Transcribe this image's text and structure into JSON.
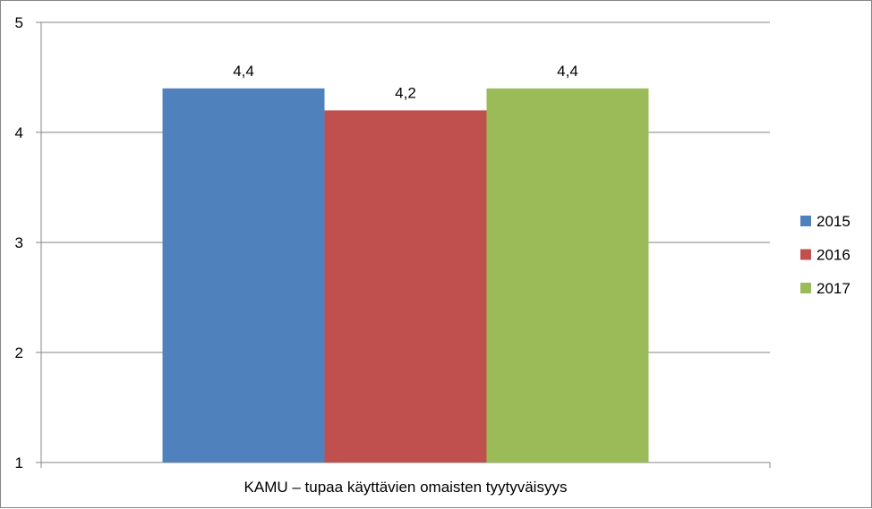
{
  "chart_data": {
    "type": "bar",
    "categories": [
      "KAMU – tupaa käyttävien omaisten tyytyväisyys"
    ],
    "series": [
      {
        "name": "2015",
        "values": [
          4.4
        ],
        "color": "#4F81BD",
        "data_label": "4,4"
      },
      {
        "name": "2016",
        "values": [
          4.2
        ],
        "color": "#C0504D",
        "data_label": "4,2"
      },
      {
        "name": "2017",
        "values": [
          4.4
        ],
        "color": "#9BBB59",
        "data_label": "4,4"
      }
    ],
    "title": "",
    "xlabel": "",
    "ylabel": "",
    "ylim": [
      1,
      5
    ],
    "yticks": [
      "1",
      "2",
      "3",
      "4",
      "5"
    ],
    "grid": true,
    "legend": "right"
  }
}
